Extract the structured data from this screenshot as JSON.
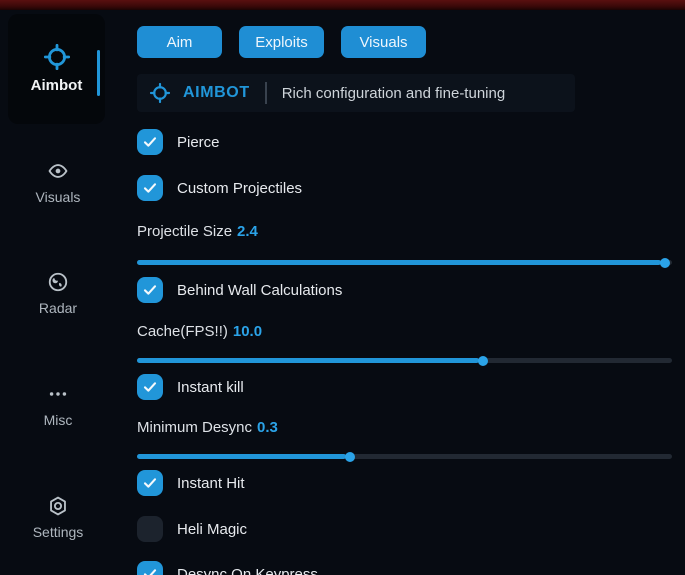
{
  "app": {
    "accent_color": "#2196d9",
    "background_color": "#070b12",
    "topbar_color": "#5a1010"
  },
  "sidebar": {
    "items": [
      {
        "label": "Aimbot",
        "icon": "crosshair-icon",
        "active": true
      },
      {
        "label": "Visuals",
        "icon": "eye-icon",
        "active": false
      },
      {
        "label": "Radar",
        "icon": "radar-icon",
        "active": false
      },
      {
        "label": "Misc",
        "icon": "ellipsis-icon",
        "active": false
      },
      {
        "label": "Settings",
        "icon": "gear-icon",
        "active": false
      }
    ]
  },
  "tabs": [
    {
      "label": "Aim"
    },
    {
      "label": "Exploits"
    },
    {
      "label": "Visuals"
    }
  ],
  "header": {
    "title": "AIMBOT",
    "subtitle": "Rich configuration and fine-tuning"
  },
  "controls": [
    {
      "type": "checkbox",
      "label": "Pierce",
      "checked": true
    },
    {
      "type": "checkbox",
      "label": "Custom Projectiles",
      "checked": true
    },
    {
      "type": "slider",
      "label": "Projectile Size",
      "value": "2.4",
      "percent": 98
    },
    {
      "type": "checkbox",
      "label": "Behind Wall Calculations",
      "checked": true
    },
    {
      "type": "slider",
      "label": "Cache(FPS!!)",
      "value": "10.0",
      "percent": 64
    },
    {
      "type": "checkbox",
      "label": "Instant kill",
      "checked": true
    },
    {
      "type": "slider",
      "label": "Minimum Desync",
      "value": "0.3",
      "percent": 39
    },
    {
      "type": "checkbox",
      "label": "Instant Hit",
      "checked": true
    },
    {
      "type": "checkbox",
      "label": "Heli Magic",
      "checked": false
    },
    {
      "type": "checkbox",
      "label": "Desync On Keypress",
      "checked": true
    }
  ]
}
